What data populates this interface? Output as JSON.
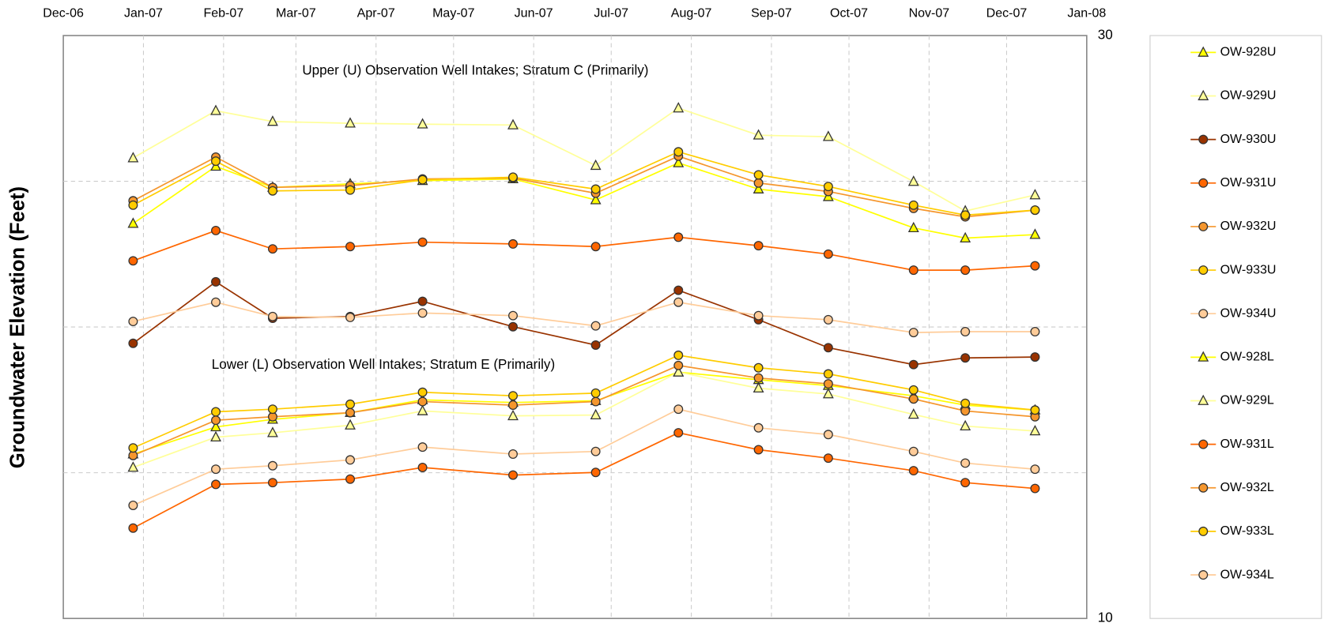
{
  "chart_data": {
    "type": "line",
    "y_label": "Groundwater Elevation (Feet)",
    "annotations": [
      "Upper (U) Observation Well Intakes; Stratum C (Primarily)",
      "Lower (L) Observation Well Intakes; Stratum E (Primarily)"
    ],
    "x": [
      "2006-12-28",
      "2007-01-29",
      "2007-02-20",
      "2007-03-22",
      "2007-04-19",
      "2007-05-24",
      "2007-06-25",
      "2007-07-27",
      "2007-08-27",
      "2007-09-23",
      "2007-10-26",
      "2007-11-15",
      "2007-12-12"
    ],
    "xlim": [
      "2006-12-01",
      "2008-01-01"
    ],
    "xticks": [
      {
        "value": "2006-12-01",
        "label": "Dec-06"
      },
      {
        "value": "2007-01-01",
        "label": "Jan-07"
      },
      {
        "value": "2007-02-01",
        "label": "Feb-07"
      },
      {
        "value": "2007-03-01",
        "label": "Mar-07"
      },
      {
        "value": "2007-04-01",
        "label": "Apr-07"
      },
      {
        "value": "2007-05-01",
        "label": "May-07"
      },
      {
        "value": "2007-06-01",
        "label": "Jun-07"
      },
      {
        "value": "2007-07-01",
        "label": "Jul-07"
      },
      {
        "value": "2007-08-01",
        "label": "Aug-07"
      },
      {
        "value": "2007-09-01",
        "label": "Sep-07"
      },
      {
        "value": "2007-10-01",
        "label": "Oct-07"
      },
      {
        "value": "2007-11-01",
        "label": "Nov-07"
      },
      {
        "value": "2007-12-01",
        "label": "Dec-07"
      },
      {
        "value": "2008-01-01",
        "label": "Jan-08"
      }
    ],
    "ylim": [
      10,
      30
    ],
    "yticks": [
      10,
      30
    ],
    "ygrid": [
      15,
      20,
      25
    ],
    "grid": true,
    "legend": "right",
    "series": [
      {
        "name": "OW-928U",
        "color": "#ffff00",
        "marker": "triangle",
        "values": [
          23.55,
          25.51,
          24.79,
          24.91,
          25.02,
          25.08,
          24.36,
          25.63,
          24.73,
          24.47,
          23.4,
          23.05,
          23.17
        ]
      },
      {
        "name": "OW-929U",
        "color": "#ffff99",
        "marker": "triangle",
        "values": [
          25.8,
          27.42,
          27.05,
          26.99,
          26.96,
          26.93,
          25.54,
          27.51,
          26.58,
          26.53,
          24.99,
          23.98,
          24.53
        ]
      },
      {
        "name": "OW-930U",
        "color": "#993300",
        "marker": "circle",
        "values": [
          19.44,
          21.55,
          20.3,
          20.36,
          20.88,
          20.01,
          19.38,
          21.26,
          20.25,
          19.29,
          18.71,
          18.94,
          18.97
        ]
      },
      {
        "name": "OW-931U",
        "color": "#ff6600",
        "marker": "circle",
        "values": [
          22.27,
          23.31,
          22.68,
          22.76,
          22.91,
          22.85,
          22.76,
          23.08,
          22.79,
          22.5,
          21.95,
          21.95,
          22.1
        ]
      },
      {
        "name": "OW-932U",
        "color": "#f5962d",
        "marker": "circle",
        "values": [
          24.33,
          25.83,
          24.79,
          24.85,
          25.08,
          25.11,
          24.59,
          25.86,
          24.94,
          24.65,
          24.07,
          23.78,
          24.01
        ]
      },
      {
        "name": "OW-933U",
        "color": "#ffcc00",
        "marker": "circle",
        "values": [
          24.18,
          25.69,
          24.67,
          24.7,
          25.05,
          25.14,
          24.73,
          26.01,
          25.22,
          24.82,
          24.18,
          23.84,
          24.01
        ]
      },
      {
        "name": "OW-934U",
        "color": "#ffcc99",
        "marker": "circle",
        "values": [
          20.19,
          20.85,
          20.36,
          20.33,
          20.48,
          20.39,
          20.04,
          20.85,
          20.39,
          20.25,
          19.81,
          19.84,
          19.84
        ]
      },
      {
        "name": "OW-928L",
        "color": "#ffff00",
        "marker": "triangle",
        "values": [
          15.64,
          16.57,
          16.83,
          17.06,
          17.5,
          17.41,
          17.47,
          18.45,
          18.19,
          17.99,
          17.64,
          17.32,
          17.15
        ]
      },
      {
        "name": "OW-929L",
        "color": "#ffff99",
        "marker": "triangle",
        "values": [
          15.18,
          16.22,
          16.37,
          16.63,
          17.12,
          16.95,
          16.98,
          18.45,
          17.9,
          17.7,
          17.0,
          16.6,
          16.43
        ]
      },
      {
        "name": "OW-931L",
        "color": "#ff6600",
        "marker": "circle",
        "values": [
          13.1,
          14.6,
          14.66,
          14.78,
          15.18,
          14.92,
          15.01,
          16.37,
          15.79,
          15.5,
          15.07,
          14.66,
          14.46
        ]
      },
      {
        "name": "OW-932L",
        "color": "#f5962d",
        "marker": "circle",
        "values": [
          15.59,
          16.8,
          16.92,
          17.06,
          17.44,
          17.32,
          17.44,
          18.68,
          18.25,
          18.05,
          17.53,
          17.12,
          16.92
        ]
      },
      {
        "name": "OW-933L",
        "color": "#ffcc00",
        "marker": "circle",
        "values": [
          15.85,
          17.09,
          17.18,
          17.35,
          17.76,
          17.64,
          17.73,
          19.03,
          18.6,
          18.39,
          17.84,
          17.38,
          17.15
        ]
      },
      {
        "name": "OW-934L",
        "color": "#ffcc99",
        "marker": "circle",
        "values": [
          13.88,
          15.12,
          15.24,
          15.44,
          15.88,
          15.64,
          15.73,
          17.18,
          16.54,
          16.31,
          15.73,
          15.33,
          15.12
        ]
      }
    ]
  }
}
